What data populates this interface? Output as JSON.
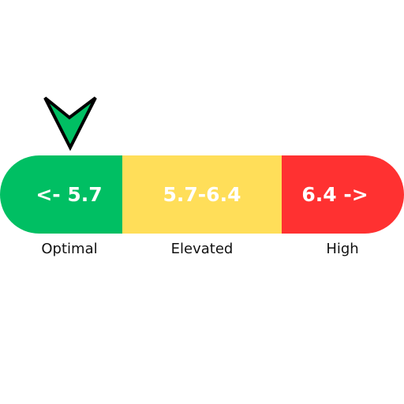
{
  "indicator": {
    "icon": "down-arrow-marker-icon",
    "color": "#00bf63",
    "current_category": "Optimal"
  },
  "scale": {
    "segments": [
      {
        "range_label": "<- 5.7",
        "category": "Optimal",
        "color": "#00bf63"
      },
      {
        "range_label": "5.7-6.4",
        "category": "Elevated",
        "color": "#ffde59"
      },
      {
        "range_label": "6.4 ->",
        "category": "High",
        "color": "#ff3131"
      }
    ]
  }
}
